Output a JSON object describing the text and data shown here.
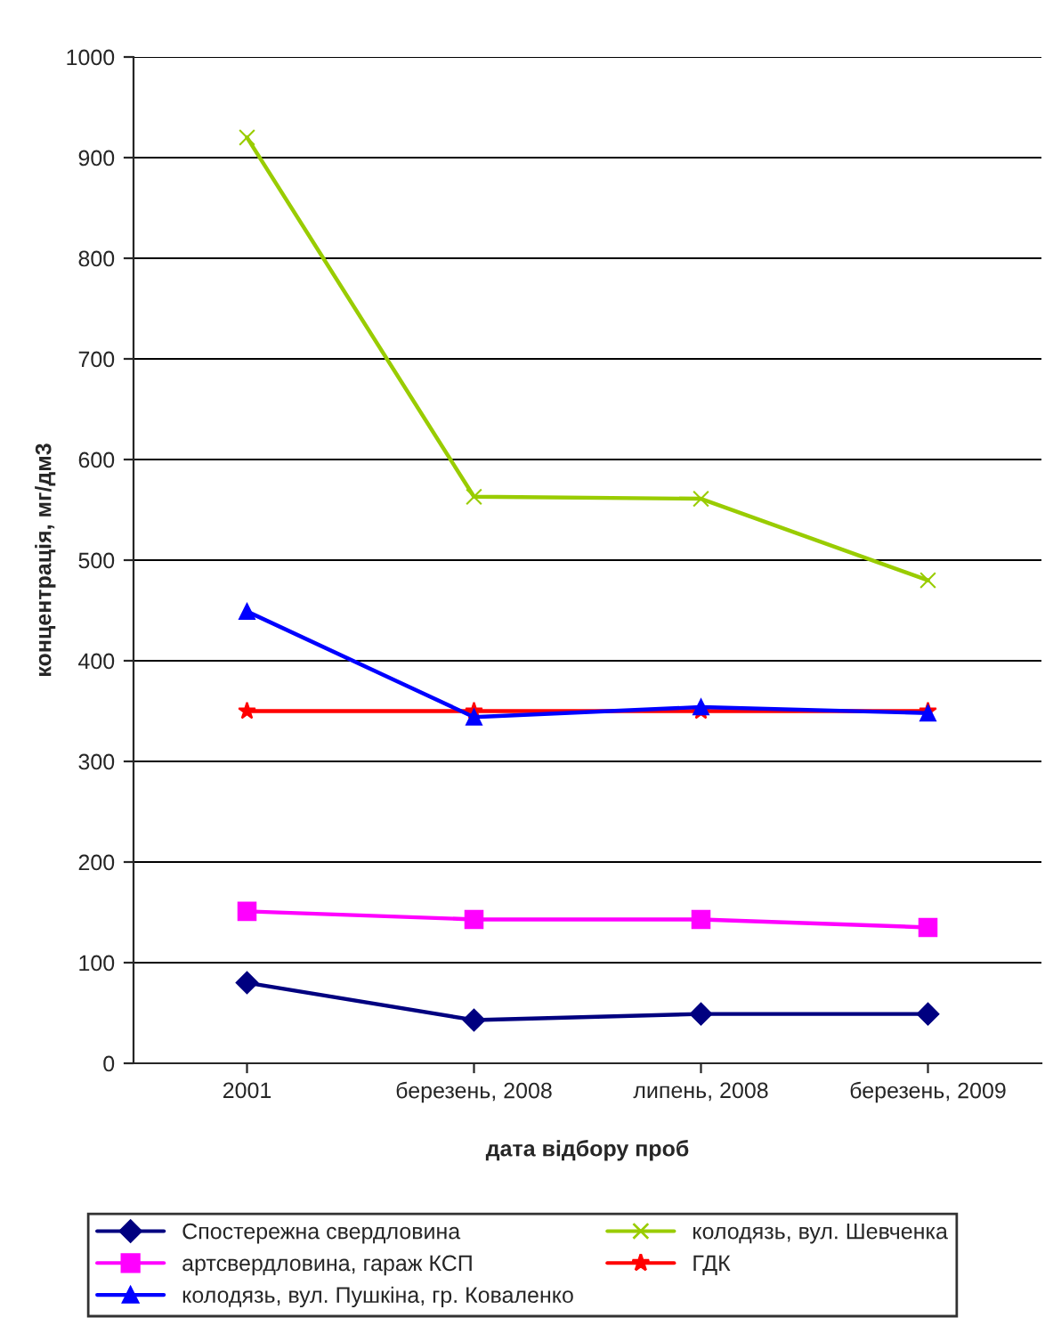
{
  "chart_data": {
    "type": "line",
    "xlabel": "дата відбору проб",
    "ylabel": "концентрація, мг/дм3",
    "categories": [
      "2001",
      "березень, 2008",
      "липень, 2008",
      "березень, 2009"
    ],
    "series": [
      {
        "name": "Спостережна свердловина",
        "color": "#000080",
        "marker": "diamond",
        "values": [
          80,
          43,
          49,
          49
        ]
      },
      {
        "name": "артсвердловина, гараж КСП",
        "color": "#ff00ff",
        "marker": "square",
        "values": [
          151,
          143,
          143,
          135
        ]
      },
      {
        "name": "колодязь, вул. Пушкіна, гр. Коваленко",
        "color": "#0000ff",
        "marker": "triangle",
        "values": [
          449,
          344,
          354,
          348
        ]
      },
      {
        "name": "колодязь, вул. Шевченка",
        "color": "#99cc00",
        "marker": "cross",
        "values": [
          920,
          563,
          561,
          480
        ]
      },
      {
        "name": "ГДК",
        "color": "#ff0000",
        "marker": "star",
        "values": [
          350,
          350,
          350,
          350
        ]
      }
    ],
    "ylim": [
      0,
      1000
    ],
    "yticks": [
      0,
      100,
      200,
      300,
      400,
      500,
      600,
      700,
      800,
      900,
      1000
    ],
    "grid": "y",
    "legend": "bottom",
    "line_style": "solid"
  }
}
